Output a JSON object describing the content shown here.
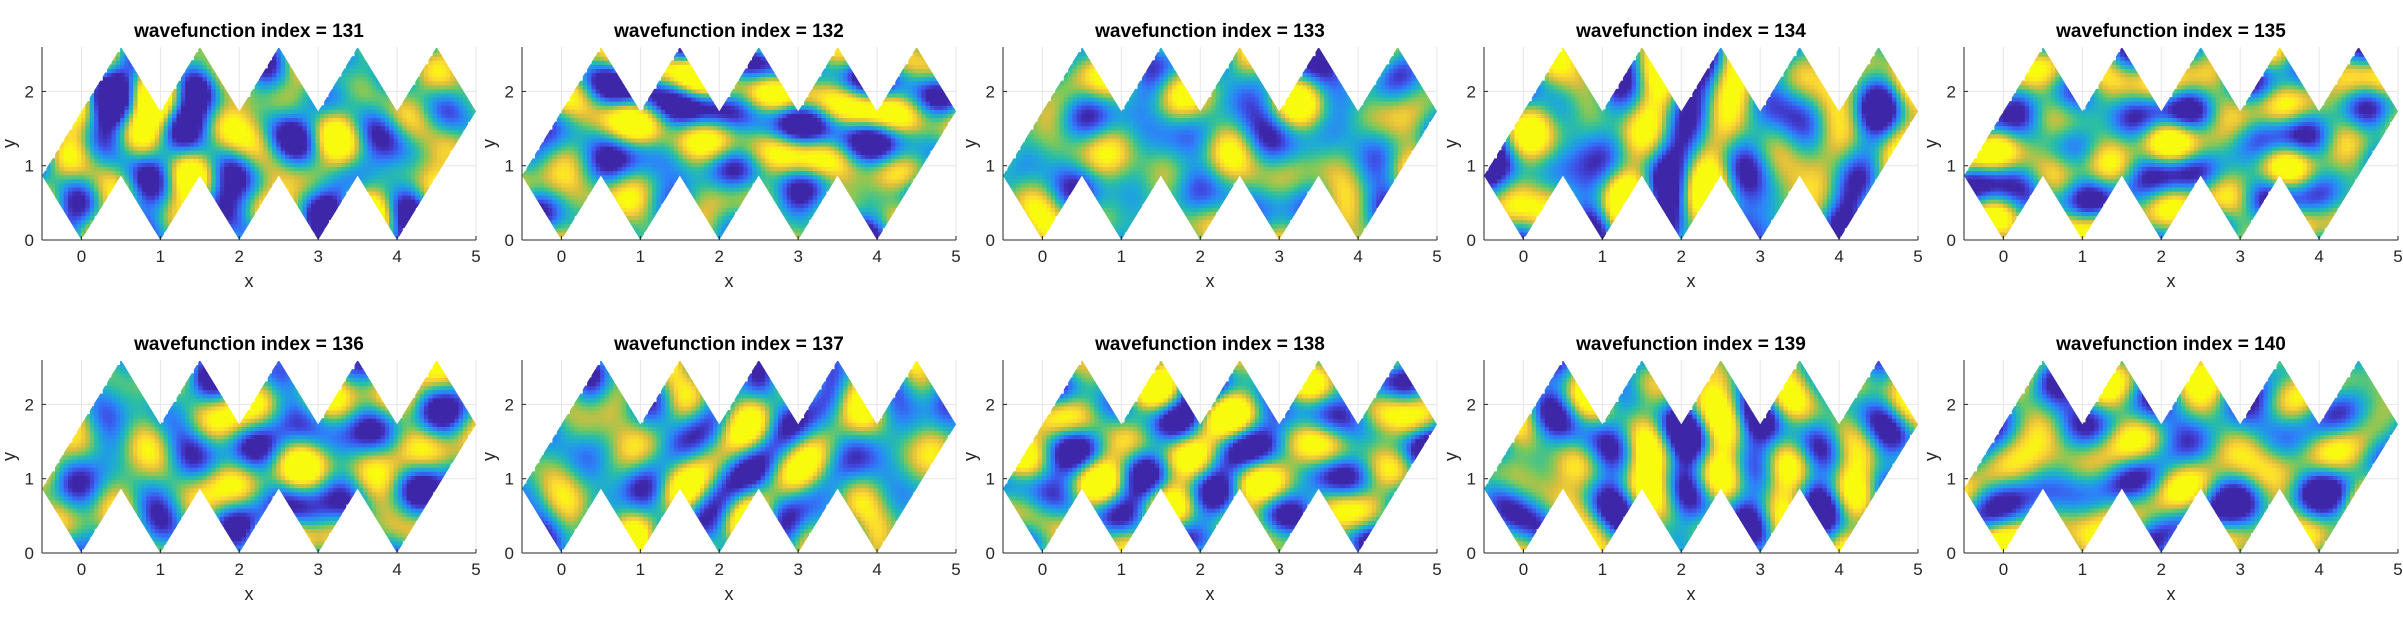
{
  "figure": {
    "background": "#ffffff"
  },
  "colormap": {
    "name": "parula",
    "stops": [
      "#3e26a8",
      "#3f4fe6",
      "#2d82f9",
      "#1da8d8",
      "#2ec09f",
      "#7fc85a",
      "#dcbd3d",
      "#fcd932",
      "#f9fb0e"
    ]
  },
  "chart_data": [
    {
      "type": "heatmap",
      "title": "wavefunction index = 131",
      "xlabel": "x",
      "ylabel": "y",
      "xlim": [
        -0.5,
        5
      ],
      "ylim": [
        0,
        2.598
      ],
      "xticks": [
        "0",
        "1",
        "2",
        "3",
        "4",
        "5"
      ],
      "yticks": [
        "0",
        "1",
        "2"
      ],
      "grid": true,
      "seed": 131
    },
    {
      "type": "heatmap",
      "title": "wavefunction index = 132",
      "xlabel": "x",
      "ylabel": "y",
      "xlim": [
        -0.5,
        5
      ],
      "ylim": [
        0,
        2.598
      ],
      "xticks": [
        "0",
        "1",
        "2",
        "3",
        "4",
        "5"
      ],
      "yticks": [
        "0",
        "1",
        "2"
      ],
      "grid": true,
      "seed": 132
    },
    {
      "type": "heatmap",
      "title": "wavefunction index = 133",
      "xlabel": "x",
      "ylabel": "y",
      "xlim": [
        -0.5,
        5
      ],
      "ylim": [
        0,
        2.598
      ],
      "xticks": [
        "0",
        "1",
        "2",
        "3",
        "4",
        "5"
      ],
      "yticks": [
        "0",
        "1",
        "2"
      ],
      "grid": true,
      "seed": 133
    },
    {
      "type": "heatmap",
      "title": "wavefunction index = 134",
      "xlabel": "x",
      "ylabel": "y",
      "xlim": [
        -0.5,
        5
      ],
      "ylim": [
        0,
        2.598
      ],
      "xticks": [
        "0",
        "1",
        "2",
        "3",
        "4",
        "5"
      ],
      "yticks": [
        "0",
        "1",
        "2"
      ],
      "grid": true,
      "seed": 134
    },
    {
      "type": "heatmap",
      "title": "wavefunction index = 135",
      "xlabel": "x",
      "ylabel": "y",
      "xlim": [
        -0.5,
        5
      ],
      "ylim": [
        0,
        2.598
      ],
      "xticks": [
        "0",
        "1",
        "2",
        "3",
        "4",
        "5"
      ],
      "yticks": [
        "0",
        "1",
        "2"
      ],
      "grid": true,
      "seed": 135
    },
    {
      "type": "heatmap",
      "title": "wavefunction index = 136",
      "xlabel": "x",
      "ylabel": "y",
      "xlim": [
        -0.5,
        5
      ],
      "ylim": [
        0,
        2.598
      ],
      "xticks": [
        "0",
        "1",
        "2",
        "3",
        "4",
        "5"
      ],
      "yticks": [
        "0",
        "1",
        "2"
      ],
      "grid": true,
      "seed": 136
    },
    {
      "type": "heatmap",
      "title": "wavefunction index = 137",
      "xlabel": "x",
      "ylabel": "y",
      "xlim": [
        -0.5,
        5
      ],
      "ylim": [
        0,
        2.598
      ],
      "xticks": [
        "0",
        "1",
        "2",
        "3",
        "4",
        "5"
      ],
      "yticks": [
        "0",
        "1",
        "2"
      ],
      "grid": true,
      "seed": 137
    },
    {
      "type": "heatmap",
      "title": "wavefunction index = 138",
      "xlabel": "x",
      "ylabel": "y",
      "xlim": [
        -0.5,
        5
      ],
      "ylim": [
        0,
        2.598
      ],
      "xticks": [
        "0",
        "1",
        "2",
        "3",
        "4",
        "5"
      ],
      "yticks": [
        "0",
        "1",
        "2"
      ],
      "grid": true,
      "seed": 138
    },
    {
      "type": "heatmap",
      "title": "wavefunction index = 139",
      "xlabel": "x",
      "ylabel": "y",
      "xlim": [
        -0.5,
        5
      ],
      "ylim": [
        0,
        2.598
      ],
      "xticks": [
        "0",
        "1",
        "2",
        "3",
        "4",
        "5"
      ],
      "yticks": [
        "0",
        "1",
        "2"
      ],
      "grid": true,
      "seed": 139
    },
    {
      "type": "heatmap",
      "title": "wavefunction index = 140",
      "xlabel": "x",
      "ylabel": "y",
      "xlim": [
        -0.5,
        5
      ],
      "ylim": [
        0,
        2.598
      ],
      "xticks": [
        "0",
        "1",
        "2",
        "3",
        "4",
        "5"
      ],
      "yticks": [
        "0",
        "1",
        "2"
      ],
      "grid": true,
      "seed": 140
    }
  ]
}
